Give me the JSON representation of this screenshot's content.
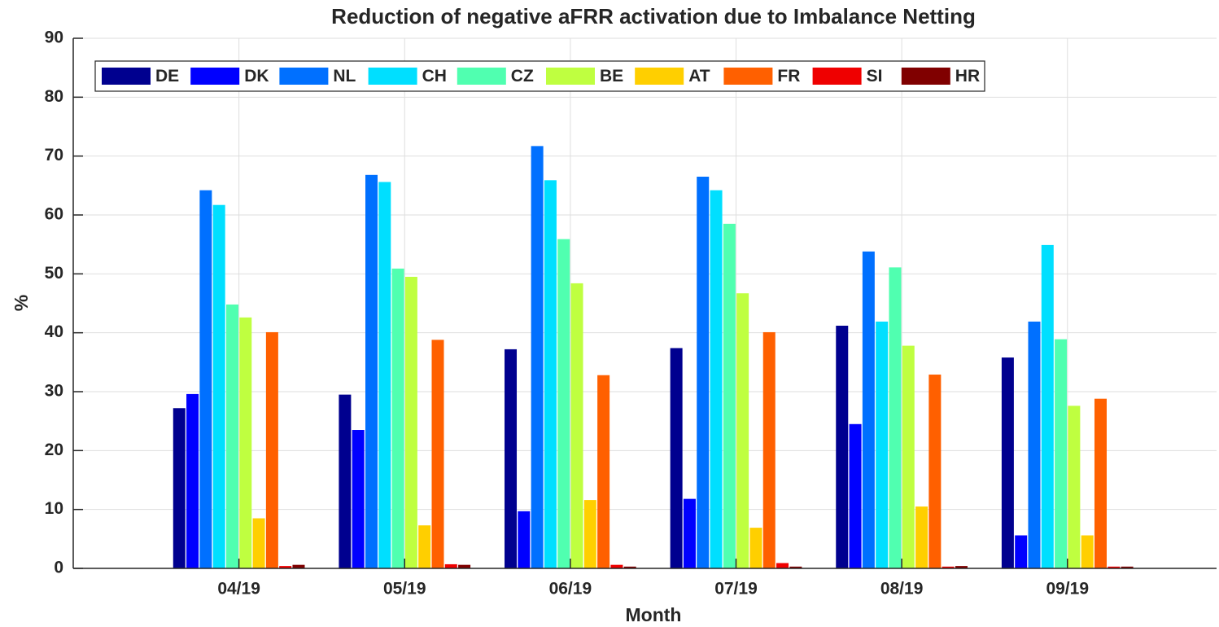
{
  "chart_data": {
    "type": "bar",
    "title": "Reduction of negative aFRR activation due to Imbalance Netting",
    "x_label": "Month",
    "y_label": "%",
    "categories": [
      "04/19",
      "05/19",
      "06/19",
      "07/19",
      "08/19",
      "09/19"
    ],
    "series": [
      {
        "name": "DE",
        "color": "#00008f",
        "values": [
          27.2,
          29.5,
          37.2,
          37.4,
          41.2,
          35.8
        ]
      },
      {
        "name": "DK",
        "color": "#0000ff",
        "values": [
          29.6,
          23.5,
          9.7,
          11.8,
          24.5,
          5.6
        ]
      },
      {
        "name": "NL",
        "color": "#0070ff",
        "values": [
          64.2,
          66.8,
          71.7,
          66.5,
          53.8,
          41.9
        ]
      },
      {
        "name": "CH",
        "color": "#00dfff",
        "values": [
          61.7,
          65.6,
          65.9,
          64.2,
          41.9,
          54.9
        ]
      },
      {
        "name": "CZ",
        "color": "#50ffb0",
        "values": [
          44.8,
          50.9,
          55.9,
          58.5,
          51.1,
          38.9
        ]
      },
      {
        "name": "BE",
        "color": "#bfff40",
        "values": [
          42.6,
          49.5,
          48.4,
          46.7,
          37.8,
          27.6
        ]
      },
      {
        "name": "AT",
        "color": "#ffcf00",
        "values": [
          8.5,
          7.3,
          11.6,
          6.9,
          10.5,
          5.6
        ]
      },
      {
        "name": "FR",
        "color": "#ff6000",
        "values": [
          40.1,
          38.8,
          32.8,
          40.1,
          32.9,
          28.8
        ]
      },
      {
        "name": "SI",
        "color": "#ef0000",
        "values": [
          0.4,
          0.7,
          0.6,
          0.9,
          0.3,
          0.3
        ]
      },
      {
        "name": "HR",
        "color": "#800000",
        "values": [
          0.6,
          0.6,
          0.3,
          0.3,
          0.4,
          0.3
        ]
      }
    ],
    "ylim": [
      0,
      90
    ],
    "yticks": [
      0,
      10,
      20,
      30,
      40,
      50,
      60,
      70,
      80,
      90
    ],
    "grid": true,
    "legend": "top-left"
  }
}
